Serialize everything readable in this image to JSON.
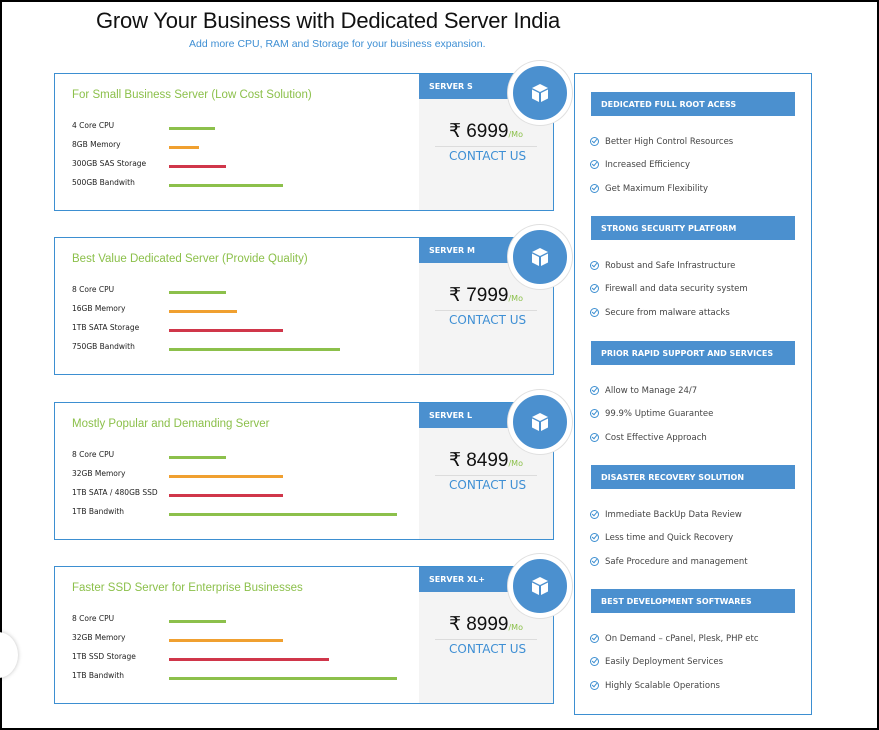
{
  "header": {
    "title": "Grow Your Business with Dedicated Server India",
    "subtitle": "Add more CPU, RAM and Storage for your business expansion."
  },
  "colors": {
    "accent": "#4b90cf",
    "green": "#8cc04b",
    "orange": "#f0a030",
    "red": "#d0364a"
  },
  "plans": [
    {
      "title": "For Small Business Server (Low Cost Solution)",
      "tag": "SERVER S",
      "currency": "₹",
      "price": "6999",
      "per": "/Mo",
      "contact": "CONTACT US",
      "icon": "box-icon",
      "specs": [
        {
          "label": "4 Core CPU",
          "level": 0.2,
          "color": "green"
        },
        {
          "label": "8GB Memory",
          "level": 0.13,
          "color": "orange"
        },
        {
          "label": "300GB SAS Storage",
          "level": 0.25,
          "color": "red"
        },
        {
          "label": "500GB Bandwith",
          "level": 0.5,
          "color": "green"
        }
      ]
    },
    {
      "title": "Best Value Dedicated Server (Provide Quality)",
      "tag": "SERVER M",
      "currency": "₹",
      "price": "7999",
      "per": "/Mo",
      "contact": "CONTACT US",
      "icon": "box-icon",
      "specs": [
        {
          "label": "8 Core CPU",
          "level": 0.25,
          "color": "green"
        },
        {
          "label": "16GB Memory",
          "level": 0.3,
          "color": "orange"
        },
        {
          "label": "1TB SATA Storage",
          "level": 0.5,
          "color": "red"
        },
        {
          "label": "750GB Bandwith",
          "level": 0.75,
          "color": "green"
        }
      ]
    },
    {
      "title": "Mostly Popular and Demanding Server",
      "tag": "SERVER L",
      "currency": "₹",
      "price": "8499",
      "per": "/Mo",
      "contact": "CONTACT US",
      "icon": "box-icon",
      "specs": [
        {
          "label": "8 Core CPU",
          "level": 0.25,
          "color": "green"
        },
        {
          "label": "32GB Memory",
          "level": 0.5,
          "color": "orange"
        },
        {
          "label": "1TB SATA / 480GB SSD",
          "level": 0.5,
          "color": "red"
        },
        {
          "label": "1TB Bandwith",
          "level": 1.0,
          "color": "green"
        }
      ]
    },
    {
      "title": "Faster SSD Server for Enterprise Businesses",
      "tag": "SERVER XL+",
      "currency": "₹",
      "price": "8999",
      "per": "/Mo",
      "contact": "CONTACT US",
      "icon": "box-icon",
      "specs": [
        {
          "label": "8 Core CPU",
          "level": 0.25,
          "color": "green"
        },
        {
          "label": "32GB Memory",
          "level": 0.5,
          "color": "orange"
        },
        {
          "label": "1TB SSD Storage",
          "level": 0.7,
          "color": "red"
        },
        {
          "label": "1TB Bandwith",
          "level": 1.0,
          "color": "green"
        }
      ]
    }
  ],
  "features": [
    {
      "heading": "DEDICATED FULL ROOT ACESS",
      "items": [
        "Better High Control Resources",
        "Increased Efficiency",
        "Get Maximum Flexibility"
      ]
    },
    {
      "heading": "STRONG SECURITY PLATFORM",
      "items": [
        "Robust and Safe Infrastructure",
        "Firewall and data security system",
        "Secure from malware attacks"
      ]
    },
    {
      "heading": "PRIOR RAPID SUPPORT AND SERVICES",
      "items": [
        "Allow to Manage 24/7",
        "99.9% Uptime Guarantee",
        "Cost Effective Approach"
      ]
    },
    {
      "heading": "DISASTER RECOVERY SOLUTION",
      "items": [
        "Immediate BackUp Data Review",
        "Less time and Quick Recovery",
        "Safe Procedure and management"
      ]
    },
    {
      "heading": "BEST DEVELOPMENT SOFTWARES",
      "items": [
        "On Demand – cPanel, Plesk, PHP etc",
        "Easily Deployment Services",
        "Highly Scalable Operations"
      ]
    }
  ]
}
